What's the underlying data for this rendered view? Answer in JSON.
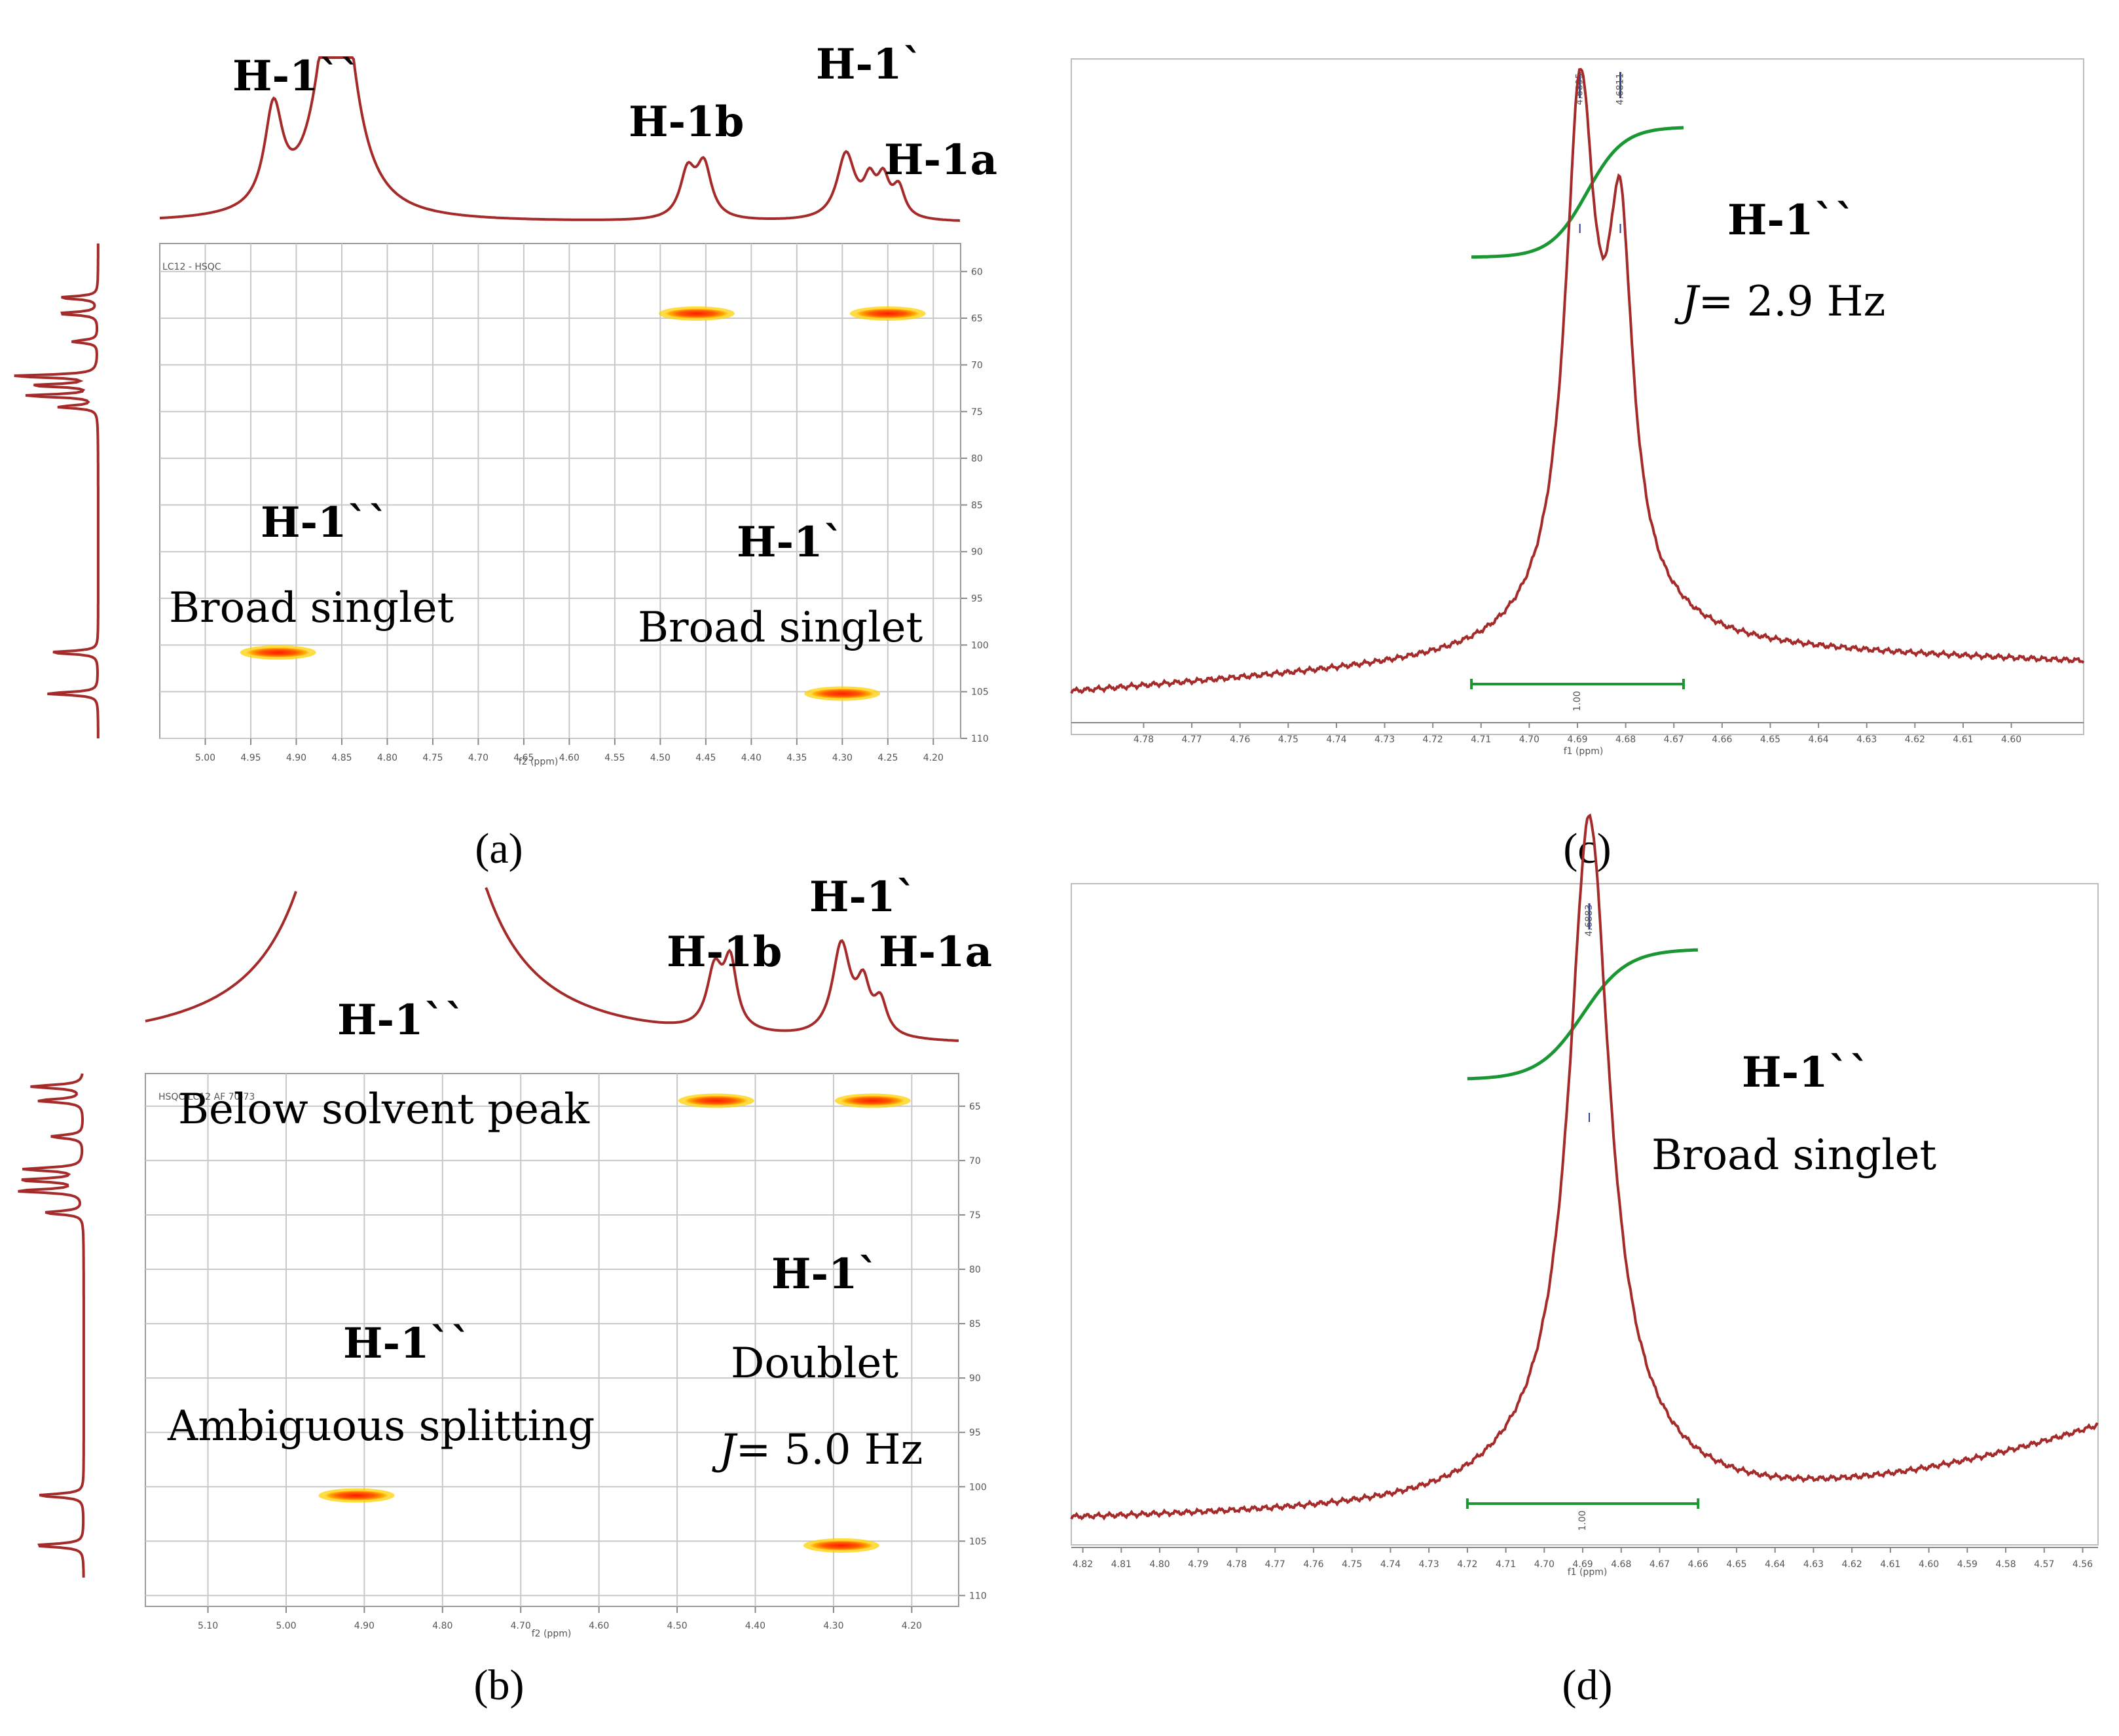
{
  "colors": {
    "spectrum": "#a52a2a",
    "integral": "#1a9632",
    "grid": "#c8c8c8",
    "peak_marker": "#2b3f8f",
    "crosspeak_core": "#ff1a00",
    "crosspeak_glow": "#ffd200"
  },
  "panels": {
    "a": {
      "label": "(a)"
    },
    "b": {
      "label": "(b)"
    },
    "c": {
      "label": "(c)"
    },
    "d": {
      "label": "(d)"
    }
  },
  "chart_data": [
    {
      "id": "a",
      "type": "heatmap",
      "subtype": "HSQC 2D NMR",
      "title": "LC12 - HSQC",
      "xlabel": "f2 (ppm)",
      "ylabel": "",
      "xlim": [
        5.05,
        4.17
      ],
      "ylim": [
        57,
        110
      ],
      "xticks": [
        "5.00",
        "4.95",
        "4.90",
        "4.85",
        "4.80",
        "4.75",
        "4.70",
        "4.65",
        "4.60",
        "4.55",
        "4.50",
        "4.45",
        "4.40",
        "4.35",
        "4.30",
        "4.25",
        "4.20"
      ],
      "yticks": [
        "60",
        "65",
        "70",
        "75",
        "80",
        "85",
        "90",
        "95",
        "100",
        "105",
        "110"
      ],
      "cross_peaks": [
        {
          "x": 4.46,
          "y": 64.5
        },
        {
          "x": 4.25,
          "y": 64.5
        },
        {
          "x": 4.92,
          "y": 100.8
        },
        {
          "x": 4.3,
          "y": 105.2
        }
      ],
      "annotations": {
        "top_h1pp": "H-1``",
        "top_h1b": "H-1b",
        "top_h1p": "H-1`",
        "top_h1a": "H-1a",
        "plot_h1pp": "H-1``",
        "plot_h1pp_desc": "Broad singlet",
        "plot_h1p": "H-1`",
        "plot_h1p_desc": "Broad singlet"
      }
    },
    {
      "id": "b",
      "type": "heatmap",
      "subtype": "HSQC 2D NMR",
      "title": "HSQC LC12 AF 70-73",
      "xlabel": "f2 (ppm)",
      "ylabel": "",
      "xlim": [
        5.18,
        4.14
      ],
      "ylim": [
        62,
        111
      ],
      "xticks": [
        "5.10",
        "5.00",
        "4.90",
        "4.80",
        "4.70",
        "4.60",
        "4.50",
        "4.40",
        "4.30",
        "4.20"
      ],
      "yticks": [
        "65",
        "70",
        "75",
        "80",
        "85",
        "90",
        "95",
        "100",
        "105",
        "110"
      ],
      "cross_peaks": [
        {
          "x": 4.45,
          "y": 64.5
        },
        {
          "x": 4.25,
          "y": 64.5
        },
        {
          "x": 4.91,
          "y": 100.8
        },
        {
          "x": 4.29,
          "y": 105.4
        }
      ],
      "annotations": {
        "top_h1pp": "H-1``",
        "top_h1b": "H-1b",
        "top_h1p": "H-1`",
        "top_h1a": "H-1a",
        "plot_solvent": "Below solvent peak",
        "plot_h1pp": "H-1``",
        "plot_h1pp_desc": "Ambiguous splitting",
        "plot_h1p": "H-1`",
        "plot_h1p_desc": "Doublet",
        "plot_j_italic": "J",
        "plot_j_value": "= 5.0 Hz"
      }
    },
    {
      "id": "c",
      "type": "line",
      "subtype": "1D 1H NMR expansion",
      "xlabel": "f1 (ppm)",
      "xlim": [
        4.795,
        4.585
      ],
      "xticks": [
        "4.78",
        "4.77",
        "4.76",
        "4.75",
        "4.74",
        "4.73",
        "4.72",
        "4.71",
        "4.70",
        "4.69",
        "4.68",
        "4.67",
        "4.66",
        "4.65",
        "4.64",
        "4.63",
        "4.62",
        "4.61",
        "4.60"
      ],
      "peaks_ppm": [
        "4.6895",
        "4.6811"
      ],
      "integral_value": "1.00",
      "integral_range": [
        4.712,
        4.668
      ],
      "annotations": {
        "label": "H-1``",
        "j_italic": "J",
        "j_value": "= 2.9 Hz"
      }
    },
    {
      "id": "d",
      "type": "line",
      "subtype": "1D 1H NMR expansion",
      "xlabel": "f1 (ppm)",
      "xlim": [
        4.823,
        4.556
      ],
      "xticks": [
        "4.82",
        "4.81",
        "4.80",
        "4.79",
        "4.78",
        "4.77",
        "4.76",
        "4.75",
        "4.74",
        "4.73",
        "4.72",
        "4.71",
        "4.70",
        "4.69",
        "4.68",
        "4.67",
        "4.66",
        "4.65",
        "4.64",
        "4.63",
        "4.62",
        "4.61",
        "4.60",
        "4.59",
        "4.58",
        "4.57",
        "4.56"
      ],
      "peaks_ppm": [
        "4.6883"
      ],
      "integral_value": "1.00",
      "integral_range": [
        4.72,
        4.66
      ],
      "annotations": {
        "label": "H-1``",
        "desc": "Broad singlet"
      }
    }
  ]
}
